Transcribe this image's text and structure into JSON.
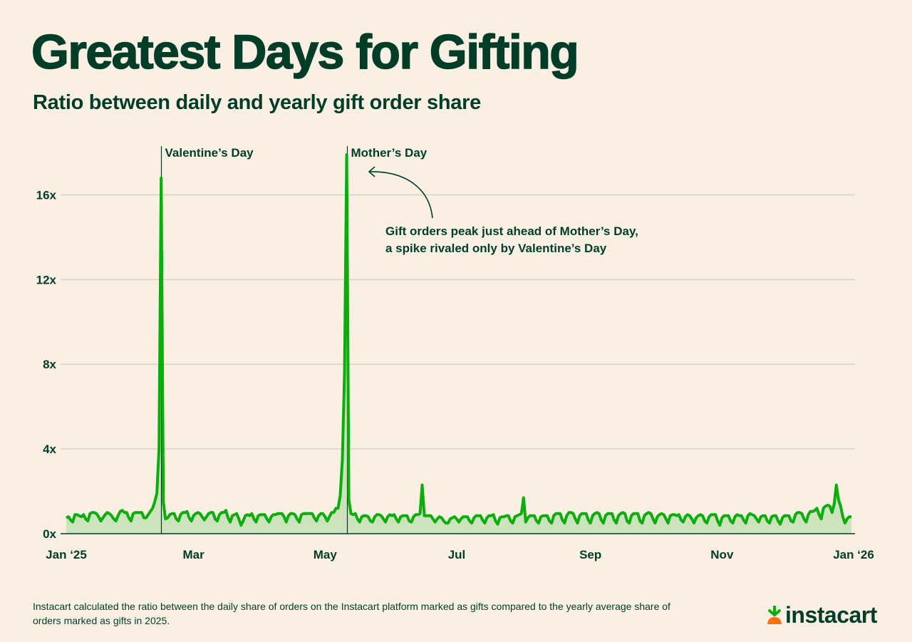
{
  "title": "Greatest Days for Gifting",
  "subtitle": "Ratio between daily and yearly gift order share",
  "footnote": "Instacart calculated the ratio between the daily share of orders on the Instacart platform marked as gifts compared to the yearly average share of orders marked as gifts in 2025.",
  "brand": {
    "name": "instacart",
    "logo_icon": "carrot-icon",
    "color_dark": "#003d29",
    "color_green": "#0aad0a",
    "color_orange": "#ff7009"
  },
  "chart_data": {
    "type": "area",
    "x_start": "2025-01-01",
    "x_end": "2025-12-31",
    "xticks": [
      "Jan ‘25",
      "Mar",
      "May",
      "Jul",
      "Sep",
      "Nov",
      "Jan ‘26"
    ],
    "xtick_dates": [
      "2025-01-01",
      "2025-03-01",
      "2025-05-01",
      "2025-07-01",
      "2025-09-01",
      "2025-11-01",
      "2026-01-01"
    ],
    "yticks": [
      "0x",
      "4x",
      "8x",
      "12x",
      "16x"
    ],
    "ytick_values": [
      0,
      4,
      8,
      12,
      16
    ],
    "ylim": [
      0,
      18
    ],
    "grid": true,
    "line_color": "#0aad0a",
    "fill_color": "#cde3bd",
    "events": [
      {
        "label": "Valentine’s Day",
        "date": "2025-02-14"
      },
      {
        "label": "Mother’s Day",
        "date": "2025-05-11"
      }
    ],
    "annotation": {
      "lines": [
        "Gift orders peak just ahead of Mother’s Day,",
        "a spike rivaled only by Valentine’s Day"
      ],
      "points_to": "Mother’s Day"
    },
    "values": [
      0.75,
      0.8,
      0.65,
      0.55,
      0.9,
      0.9,
      0.85,
      0.8,
      0.9,
      0.7,
      0.6,
      0.95,
      1.0,
      1.0,
      0.95,
      0.8,
      0.6,
      0.75,
      0.9,
      1.0,
      0.95,
      0.85,
      0.7,
      0.6,
      0.85,
      1.05,
      1.1,
      1.0,
      1.0,
      0.75,
      0.6,
      0.95,
      1.0,
      1.0,
      1.0,
      1.0,
      0.75,
      0.75,
      0.9,
      1.05,
      1.2,
      1.5,
      1.9,
      4.0,
      16.8,
      1.5,
      0.7,
      0.75,
      0.9,
      0.95,
      0.95,
      0.7,
      0.6,
      0.9,
      1.0,
      1.0,
      1.05,
      0.75,
      0.6,
      0.85,
      0.95,
      1.0,
      0.95,
      0.8,
      0.65,
      0.8,
      0.95,
      1.0,
      1.0,
      0.7,
      0.6,
      0.9,
      1.0,
      1.0,
      1.1,
      0.75,
      0.55,
      0.85,
      0.9,
      0.95,
      0.7,
      0.4,
      0.6,
      0.85,
      0.9,
      0.85,
      0.95,
      0.7,
      0.55,
      0.85,
      0.9,
      0.9,
      0.9,
      0.7,
      0.55,
      0.8,
      0.9,
      0.9,
      0.95,
      0.95,
      0.95,
      0.8,
      0.55,
      0.85,
      0.95,
      0.95,
      0.9,
      0.7,
      0.55,
      0.9,
      0.95,
      0.95,
      0.95,
      0.95,
      0.95,
      0.75,
      0.6,
      0.85,
      0.95,
      0.95,
      0.8,
      0.6,
      0.8,
      1.0,
      1.0,
      1.2,
      1.2,
      1.8,
      3.5,
      7.6,
      17.9,
      1.6,
      0.95,
      0.9,
      0.95,
      0.7,
      0.55,
      0.8,
      0.85,
      0.85,
      0.8,
      0.6,
      0.55,
      0.8,
      0.9,
      0.9,
      0.85,
      0.7,
      0.55,
      0.8,
      0.9,
      0.85,
      0.9,
      0.7,
      0.55,
      0.8,
      0.85,
      0.85,
      0.85,
      0.6,
      0.55,
      0.8,
      0.9,
      0.9,
      0.95,
      2.3,
      0.85,
      0.85,
      0.85,
      0.85,
      0.7,
      0.55,
      0.7,
      0.8,
      0.75,
      0.6,
      0.5,
      0.5,
      0.7,
      0.75,
      0.8,
      0.7,
      0.55,
      0.7,
      0.8,
      0.8,
      0.8,
      0.6,
      0.5,
      0.75,
      0.85,
      0.85,
      0.85,
      0.65,
      0.5,
      0.75,
      0.85,
      0.85,
      0.9,
      0.6,
      0.45,
      0.75,
      0.8,
      0.8,
      0.85,
      0.85,
      0.6,
      0.5,
      0.8,
      0.85,
      0.9,
      0.95,
      1.7,
      0.55,
      0.75,
      0.85,
      0.85,
      0.85,
      0.6,
      0.5,
      0.8,
      0.85,
      0.85,
      0.85,
      0.6,
      0.5,
      0.85,
      0.95,
      0.95,
      0.95,
      0.65,
      0.5,
      0.85,
      1.0,
      1.0,
      0.95,
      0.7,
      0.5,
      0.85,
      0.95,
      0.95,
      0.95,
      0.65,
      0.5,
      0.85,
      0.95,
      1.0,
      0.95,
      0.65,
      0.5,
      0.85,
      0.95,
      0.95,
      0.95,
      0.65,
      0.5,
      0.85,
      0.95,
      1.0,
      0.95,
      0.6,
      0.5,
      0.85,
      0.95,
      0.95,
      0.95,
      0.6,
      0.5,
      0.85,
      0.95,
      1.0,
      0.95,
      0.7,
      0.5,
      0.8,
      0.9,
      0.95,
      0.9,
      0.7,
      0.5,
      0.85,
      0.9,
      0.9,
      0.85,
      0.9,
      0.65,
      0.55,
      0.8,
      0.9,
      0.85,
      0.7,
      0.5,
      0.75,
      0.85,
      0.9,
      0.85,
      0.6,
      0.5,
      0.8,
      0.9,
      0.9,
      0.9,
      0.6,
      0.4,
      0.75,
      0.85,
      0.85,
      0.85,
      0.6,
      0.5,
      0.8,
      0.9,
      0.85,
      0.85,
      0.65,
      0.5,
      0.85,
      0.95,
      0.9,
      0.85,
      0.7,
      0.55,
      0.8,
      0.85,
      0.85,
      0.6,
      0.5,
      0.8,
      0.85,
      0.85,
      0.6,
      0.45,
      0.75,
      0.85,
      0.85,
      0.85,
      0.6,
      0.55,
      0.9,
      1.0,
      1.0,
      0.95,
      0.7,
      0.55,
      0.9,
      1.05,
      1.05,
      1.1,
      1.2,
      0.9,
      0.7,
      1.2,
      1.3,
      1.35,
      1.3,
      1.0,
      1.4,
      2.3,
      1.6,
      1.3,
      0.8,
      0.5,
      0.7,
      0.8,
      0.8
    ]
  }
}
